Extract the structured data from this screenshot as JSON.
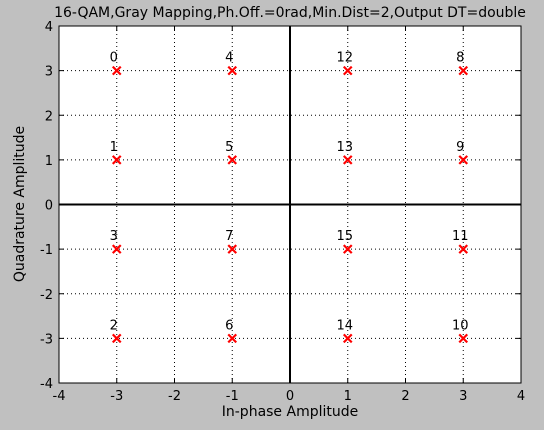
{
  "window": {
    "background": "#c0c0c0"
  },
  "chart_data": {
    "type": "scatter",
    "title": "16-QAM,Gray Mapping,Ph.Off.=0rad,Min.Dist=2,Output DT=double",
    "xlabel": "In-phase Amplitude",
    "ylabel": "Quadrature Amplitude",
    "xlim": [
      -4,
      4
    ],
    "ylim": [
      -4,
      4
    ],
    "xticks": [
      -4,
      -3,
      -2,
      -1,
      0,
      1,
      2,
      3,
      4
    ],
    "yticks": [
      -4,
      -3,
      -2,
      -1,
      0,
      1,
      2,
      3,
      4
    ],
    "grid": true,
    "marker": "x",
    "marker_color": "#ff0000",
    "axes_background": "#ffffff",
    "points": [
      {
        "x": -3,
        "y": 3,
        "label": "0"
      },
      {
        "x": -1,
        "y": 3,
        "label": "4"
      },
      {
        "x": 1,
        "y": 3,
        "label": "12"
      },
      {
        "x": 3,
        "y": 3,
        "label": "8"
      },
      {
        "x": -3,
        "y": 1,
        "label": "1"
      },
      {
        "x": -1,
        "y": 1,
        "label": "5"
      },
      {
        "x": 1,
        "y": 1,
        "label": "13"
      },
      {
        "x": 3,
        "y": 1,
        "label": "9"
      },
      {
        "x": -3,
        "y": -1,
        "label": "3"
      },
      {
        "x": -1,
        "y": -1,
        "label": "7"
      },
      {
        "x": 1,
        "y": -1,
        "label": "15"
      },
      {
        "x": 3,
        "y": -1,
        "label": "11"
      },
      {
        "x": -3,
        "y": -3,
        "label": "2"
      },
      {
        "x": -1,
        "y": -3,
        "label": "6"
      },
      {
        "x": 1,
        "y": -3,
        "label": "14"
      },
      {
        "x": 3,
        "y": -3,
        "label": "10"
      }
    ]
  }
}
